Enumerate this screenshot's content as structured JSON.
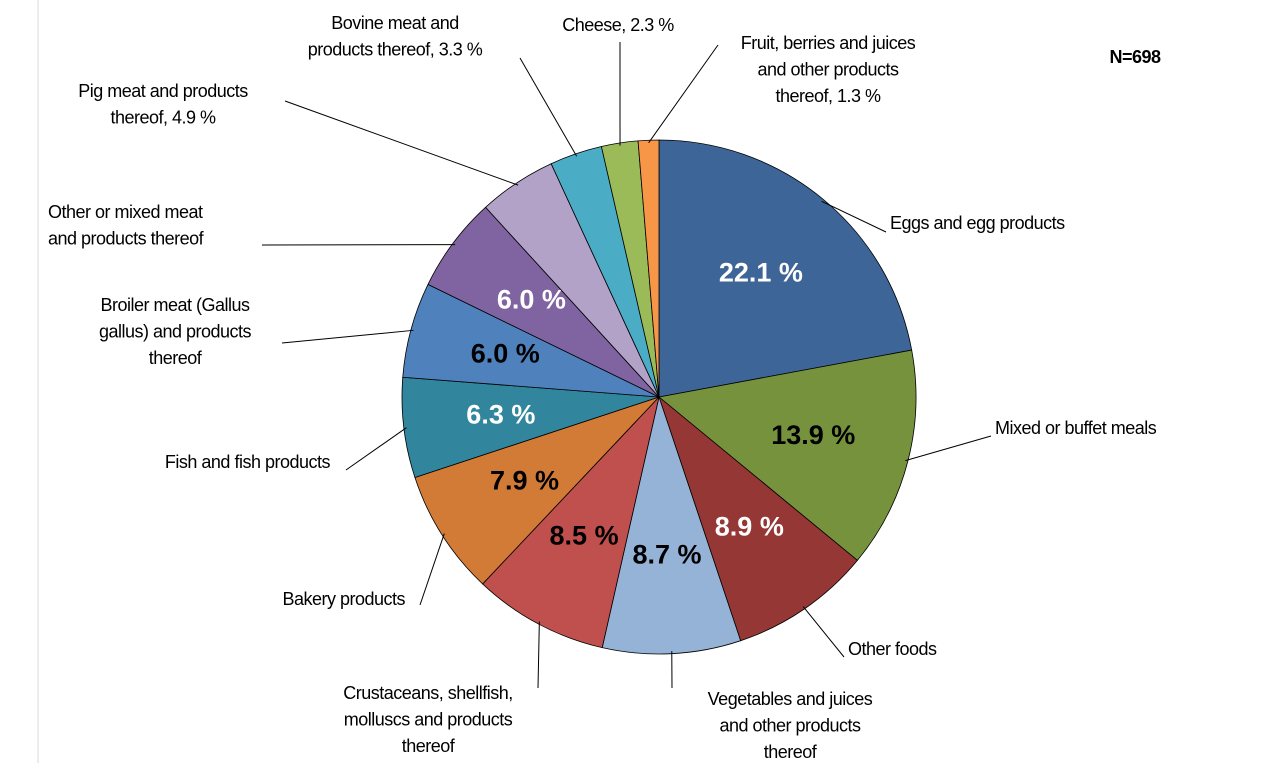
{
  "chart_data": {
    "type": "pie",
    "annotation": "N=698",
    "categories": [
      "Eggs and egg products",
      "Mixed or buffet meals",
      "Other foods",
      "Vegetables and juices\nand other products\nthereof",
      "Crustaceans, shellfish,\nmolluscs and products\nthereof",
      "Bakery products",
      "Fish and fish products",
      "Broiler meat (Gallus\ngallus) and products\nthereof",
      "Other or mixed meat\nand products thereof",
      "Pig meat and products\nthereof, 4.9 %",
      "Bovine meat and\nproducts thereof, 3.3 %",
      "Cheese, 2.3 %",
      "Fruit, berries and juices\nand other products\nthereof, 1.3 %"
    ],
    "values": [
      22.1,
      13.9,
      8.9,
      8.7,
      8.5,
      7.9,
      6.3,
      6.0,
      6.0,
      4.9,
      3.3,
      2.3,
      1.3
    ],
    "value_labels": [
      "22.1 %",
      "13.9 %",
      "8.9 %",
      "8.7 %",
      "8.5 %",
      "7.9 %",
      "6.3 %",
      "6.0 %",
      "6.0 %",
      null,
      null,
      null,
      null
    ],
    "colors": [
      "#3e6597",
      "#76923c",
      "#953735",
      "#95b3d7",
      "#c0504d",
      "#d27b36",
      "#31859c",
      "#4f81bd",
      "#8064a2",
      "#b3a2c7",
      "#4bacc6",
      "#9bbb59",
      "#f79646"
    ],
    "value_label_colors": [
      "#ffffff",
      "#000000",
      "#ffffff",
      "#000000",
      "#000000",
      "#000000",
      "#ffffff",
      "#000000",
      "#ffffff",
      null,
      null,
      null,
      null
    ]
  }
}
